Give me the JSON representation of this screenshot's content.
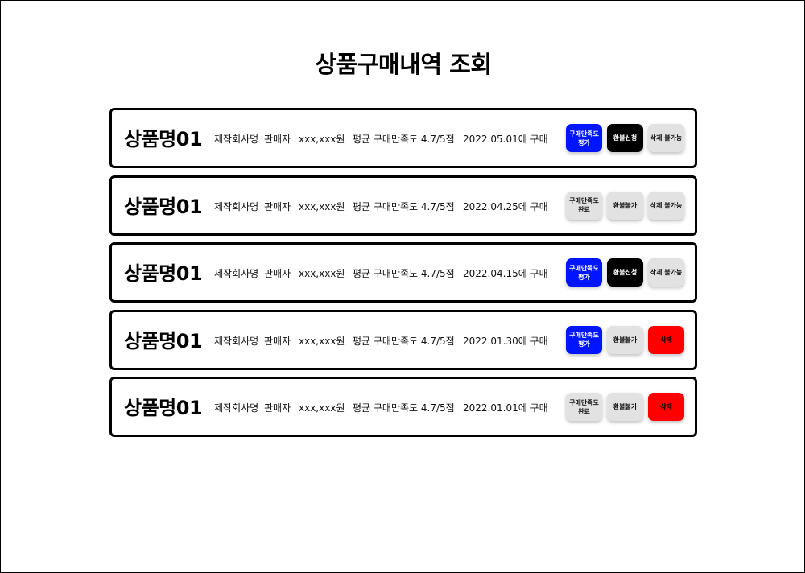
{
  "page": {
    "title": "상품구매내역 조회"
  },
  "colors": {
    "blue_button": "#0015ff",
    "black_button": "#000000",
    "gray_button": "#e2e2e2",
    "red_button": "#ff0000"
  },
  "orders": [
    {
      "product_name": "상품명01",
      "maker": "제작회사명",
      "seller": "판매자",
      "price": "xxx,xxx원",
      "rating": "평균 구매만족도 4.7/5점",
      "date": "2022.05.01에 구매",
      "rate_button": {
        "label": "구매만족도\n평가",
        "style": "blue"
      },
      "refund_button": {
        "label": "환불신청",
        "style": "black"
      },
      "delete_button": {
        "label": "삭제 불가능",
        "style": "gray"
      }
    },
    {
      "product_name": "상품명01",
      "maker": "제작회사명",
      "seller": "판매자",
      "price": "xxx,xxx원",
      "rating": "평균 구매만족도 4.7/5점",
      "date": "2022.04.25에 구매",
      "rate_button": {
        "label": "구매만족도\n완료",
        "style": "gray"
      },
      "refund_button": {
        "label": "환불불가",
        "style": "gray"
      },
      "delete_button": {
        "label": "삭제 불가능",
        "style": "gray"
      }
    },
    {
      "product_name": "상품명01",
      "maker": "제작회사명",
      "seller": "판매자",
      "price": "xxx,xxx원",
      "rating": "평균 구매만족도 4.7/5점",
      "date": "2022.04.15에 구매",
      "rate_button": {
        "label": "구매만족도\n평가",
        "style": "blue"
      },
      "refund_button": {
        "label": "환불신청",
        "style": "black"
      },
      "delete_button": {
        "label": "삭제 불가능",
        "style": "gray"
      }
    },
    {
      "product_name": "상품명01",
      "maker": "제작회사명",
      "seller": "판매자",
      "price": "xxx,xxx원",
      "rating": "평균 구매만족도 4.7/5점",
      "date": "2022.01.30에 구매",
      "rate_button": {
        "label": "구매만족도\n평가",
        "style": "blue"
      },
      "refund_button": {
        "label": "환불불가",
        "style": "gray"
      },
      "delete_button": {
        "label": "삭제",
        "style": "red"
      }
    },
    {
      "product_name": "상품명01",
      "maker": "제작회사명",
      "seller": "판매자",
      "price": "xxx,xxx원",
      "rating": "평균 구매만족도 4.7/5점",
      "date": "2022.01.01에 구매",
      "rate_button": {
        "label": "구매만족도\n완료",
        "style": "gray"
      },
      "refund_button": {
        "label": "환불불가",
        "style": "gray"
      },
      "delete_button": {
        "label": "삭제",
        "style": "red"
      }
    }
  ]
}
